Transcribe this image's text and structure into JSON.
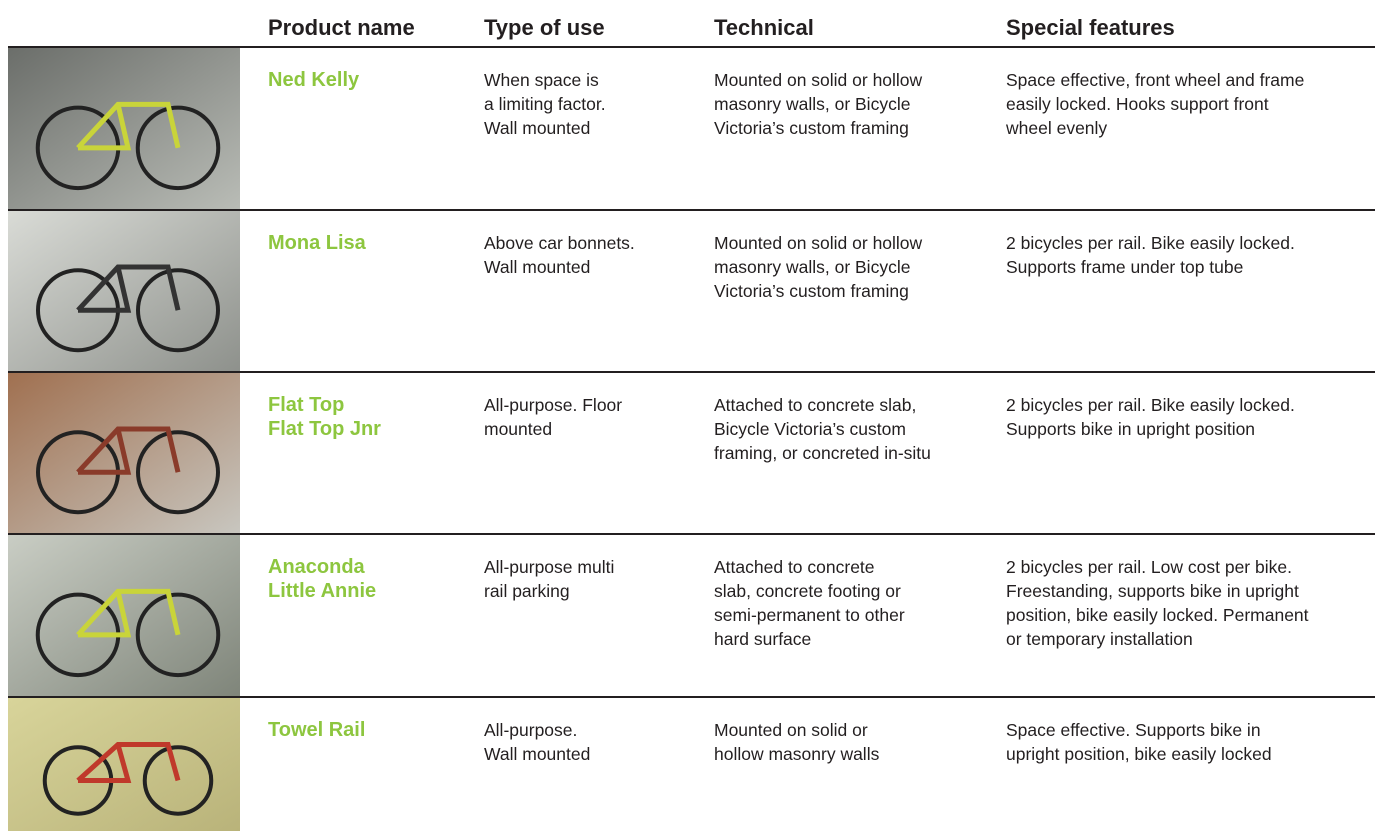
{
  "header": {
    "columns": [
      "Product name",
      "Type of use",
      "Technical",
      "Special features"
    ]
  },
  "rows": [
    {
      "product": [
        "Ned Kelly"
      ],
      "type_of_use": [
        "When space is",
        "a limiting factor.",
        "Wall mounted"
      ],
      "technical": [
        "Mounted on solid or hollow",
        "masonry walls, or Bicycle",
        "Victoria’s custom framing"
      ],
      "special_features": [
        "Space effective, front wheel and frame",
        "easily locked. Hooks support front",
        "wheel evenly"
      ]
    },
    {
      "product": [
        "Mona Lisa"
      ],
      "type_of_use": [
        "Above car bonnets.",
        "Wall mounted"
      ],
      "technical": [
        "Mounted on solid or hollow",
        "masonry walls, or Bicycle",
        "Victoria’s custom framing"
      ],
      "special_features": [
        "2 bicycles per rail. Bike easily locked.",
        "Supports frame under top tube"
      ]
    },
    {
      "product": [
        "Flat Top",
        "Flat Top Jnr"
      ],
      "type_of_use": [
        "All-purpose. Floor",
        "mounted"
      ],
      "technical": [
        "Attached to concrete slab,",
        "Bicycle Victoria’s custom",
        "framing, or concreted in-situ"
      ],
      "special_features": [
        "2 bicycles per rail. Bike easily locked.",
        "Supports bike in upright position"
      ]
    },
    {
      "product": [
        "Anaconda",
        "Little Annie"
      ],
      "type_of_use": [
        "All-purpose multi",
        "rail parking"
      ],
      "technical": [
        "Attached to concrete",
        "slab, concrete footing or",
        "semi-permanent to other",
        "hard surface"
      ],
      "special_features": [
        "2 bicycles per rail. Low cost per bike.",
        "Freestanding, supports bike in upright",
        "position, bike easily locked. Permanent",
        "or temporary installation"
      ]
    },
    {
      "product": [
        "Towel Rail"
      ],
      "type_of_use": [
        "All-purpose.",
        "Wall mounted"
      ],
      "technical": [
        "Mounted on solid or",
        "hollow masonry walls"
      ],
      "special_features": [
        "Space effective. Supports bike in",
        "upright position, bike easily locked"
      ]
    }
  ]
}
